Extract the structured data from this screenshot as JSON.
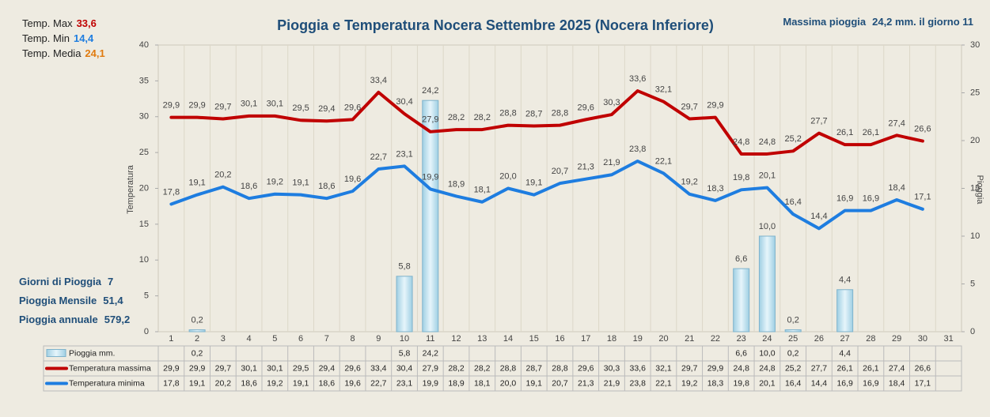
{
  "chart_data": {
    "type": "combo",
    "title": "Pioggia e Temperatura Nocera Settembre 2025 (Nocera Inferiore)",
    "ylabel": "Temperatura",
    "y2label": "Pioggia",
    "annotations": {
      "top_left": [
        {
          "label": "Temp. Max",
          "value": "33,6",
          "color": "#c00000"
        },
        {
          "label": "Temp.  Min",
          "value": "14,4",
          "color": "#1e7de0"
        },
        {
          "label": "Temp. Media",
          "value": "24,1",
          "color": "#e07b10"
        }
      ],
      "top_right": {
        "label": "Massima pioggia",
        "value": "24,2 mm. il giorno 11"
      },
      "left": [
        {
          "label": "Giorni di Pioggia",
          "value": "7"
        },
        {
          "label": "Pioggia Mensile",
          "value": "51,4"
        },
        {
          "label": "Pioggia annuale",
          "value": "579,2"
        }
      ]
    },
    "categories": [
      "1",
      "2",
      "3",
      "4",
      "5",
      "6",
      "7",
      "8",
      "9",
      "10",
      "11",
      "12",
      "13",
      "14",
      "15",
      "16",
      "17",
      "18",
      "19",
      "20",
      "21",
      "22",
      "23",
      "24",
      "25",
      "26",
      "27",
      "28",
      "29",
      "30",
      "31"
    ],
    "ylim": [
      0,
      40
    ],
    "yticks": [
      0,
      5,
      10,
      15,
      20,
      25,
      30,
      35,
      40
    ],
    "y2lim": [
      0,
      30
    ],
    "y2ticks": [
      0,
      5,
      10,
      15,
      20,
      25,
      30
    ],
    "grid": false,
    "series": [
      {
        "name": "Pioggia mm.",
        "type": "bar",
        "axis": "y2",
        "color": "#bfe3f0",
        "values": [
          null,
          0.2,
          null,
          null,
          null,
          null,
          null,
          null,
          null,
          5.8,
          24.2,
          null,
          null,
          null,
          null,
          null,
          null,
          null,
          null,
          null,
          null,
          null,
          6.6,
          10.0,
          0.2,
          null,
          4.4,
          null,
          null,
          null,
          null
        ],
        "value_labels": [
          null,
          "0,2",
          null,
          null,
          null,
          null,
          null,
          null,
          null,
          "5,8",
          "24,2",
          null,
          null,
          null,
          null,
          null,
          null,
          null,
          null,
          null,
          null,
          null,
          "6,6",
          "10,0",
          "0,2",
          null,
          "4,4",
          null,
          null,
          null,
          null
        ]
      },
      {
        "name": "Temperatura massima",
        "type": "line",
        "axis": "y",
        "color": "#c00000",
        "values": [
          29.9,
          29.9,
          29.7,
          30.1,
          30.1,
          29.5,
          29.4,
          29.6,
          33.4,
          30.4,
          27.9,
          28.2,
          28.2,
          28.8,
          28.7,
          28.8,
          29.6,
          30.3,
          33.6,
          32.1,
          29.7,
          29.9,
          24.8,
          24.8,
          25.2,
          27.7,
          26.1,
          26.1,
          27.4,
          26.6,
          null
        ],
        "value_labels": [
          "29,9",
          "29,9",
          "29,7",
          "30,1",
          "30,1",
          "29,5",
          "29,4",
          "29,6",
          "33,4",
          "30,4",
          "27,9",
          "28,2",
          "28,2",
          "28,8",
          "28,7",
          "28,8",
          "29,6",
          "30,3",
          "33,6",
          "32,1",
          "29,7",
          "29,9",
          "24,8",
          "24,8",
          "25,2",
          "27,7",
          "26,1",
          "26,1",
          "27,4",
          "26,6",
          null
        ]
      },
      {
        "name": "Temperatura minima",
        "type": "line",
        "axis": "y",
        "color": "#1e7de0",
        "values": [
          17.8,
          19.1,
          20.2,
          18.6,
          19.2,
          19.1,
          18.6,
          19.6,
          22.7,
          23.1,
          19.9,
          18.9,
          18.1,
          20.0,
          19.1,
          20.7,
          21.3,
          21.9,
          23.8,
          22.1,
          19.2,
          18.3,
          19.8,
          20.1,
          16.4,
          14.4,
          16.9,
          16.9,
          18.4,
          17.1,
          null
        ],
        "value_labels": [
          "17,8",
          "19,1",
          "20,2",
          "18,6",
          "19,2",
          "19,1",
          "18,6",
          "19,6",
          "22,7",
          "23,1",
          "19,9",
          "18,9",
          "18,1",
          "20,0",
          "19,1",
          "20,7",
          "21,3",
          "21,9",
          "23,8",
          "22,1",
          "19,2",
          "18,3",
          "19,8",
          "20,1",
          "16,4",
          "14,4",
          "16,9",
          "16,9",
          "18,4",
          "17,1",
          null
        ]
      }
    ]
  }
}
